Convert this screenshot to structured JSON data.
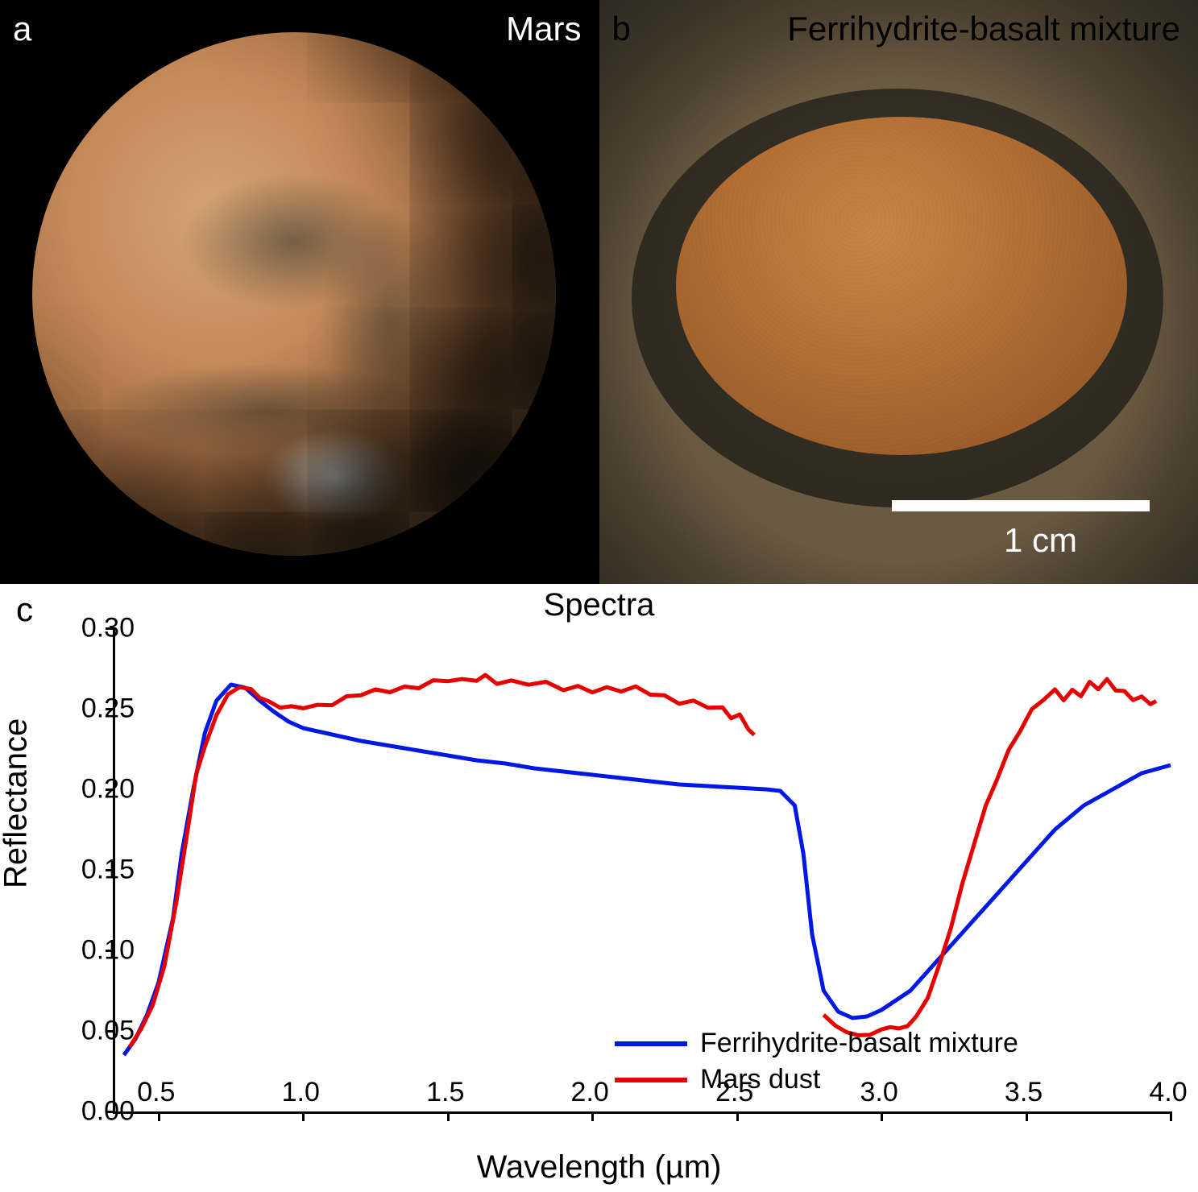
{
  "panel_a": {
    "letter": "a",
    "label": "Mars",
    "label_color": "#ffffff",
    "letter_color": "#ffffff"
  },
  "panel_b": {
    "letter": "b",
    "label": "Ferrihydrite-basalt mixture",
    "label_color": "#000000",
    "letter_color": "#000000",
    "scalebar_text": "1 cm",
    "scalebar_color": "#ffffff"
  },
  "panel_c": {
    "letter": "c",
    "title": "Spectra",
    "y_axis_label": "Reflectance",
    "x_axis_label": "Wavelength (µm)",
    "xlim": [
      0.35,
      4.0
    ],
    "ylim": [
      0.0,
      0.3
    ],
    "xticks": [
      0.5,
      1.0,
      1.5,
      2.0,
      2.5,
      3.0,
      3.5,
      4.0
    ],
    "yticks": [
      0.0,
      0.05,
      0.1,
      0.15,
      0.2,
      0.25,
      0.3
    ],
    "line_width": 5,
    "title_fontsize": 40,
    "label_fontsize": 40,
    "tick_fontsize": 34,
    "background_color": "#ffffff",
    "series": {
      "ferrihydrite": {
        "label": "Ferrihydrite-basalt mixture",
        "color": "#0018e6",
        "data": [
          [
            0.38,
            0.035
          ],
          [
            0.42,
            0.045
          ],
          [
            0.46,
            0.06
          ],
          [
            0.5,
            0.08
          ],
          [
            0.55,
            0.12
          ],
          [
            0.58,
            0.16
          ],
          [
            0.62,
            0.2
          ],
          [
            0.66,
            0.235
          ],
          [
            0.7,
            0.255
          ],
          [
            0.75,
            0.265
          ],
          [
            0.8,
            0.263
          ],
          [
            0.85,
            0.255
          ],
          [
            0.9,
            0.248
          ],
          [
            0.95,
            0.242
          ],
          [
            1.0,
            0.238
          ],
          [
            1.1,
            0.234
          ],
          [
            1.2,
            0.23
          ],
          [
            1.3,
            0.227
          ],
          [
            1.4,
            0.224
          ],
          [
            1.5,
            0.221
          ],
          [
            1.6,
            0.218
          ],
          [
            1.7,
            0.216
          ],
          [
            1.8,
            0.213
          ],
          [
            1.9,
            0.211
          ],
          [
            2.0,
            0.209
          ],
          [
            2.1,
            0.207
          ],
          [
            2.2,
            0.205
          ],
          [
            2.3,
            0.203
          ],
          [
            2.4,
            0.202
          ],
          [
            2.5,
            0.201
          ],
          [
            2.6,
            0.2
          ],
          [
            2.65,
            0.199
          ],
          [
            2.7,
            0.19
          ],
          [
            2.73,
            0.16
          ],
          [
            2.76,
            0.11
          ],
          [
            2.8,
            0.075
          ],
          [
            2.85,
            0.062
          ],
          [
            2.9,
            0.058
          ],
          [
            2.95,
            0.059
          ],
          [
            3.0,
            0.063
          ],
          [
            3.1,
            0.075
          ],
          [
            3.2,
            0.095
          ],
          [
            3.3,
            0.115
          ],
          [
            3.4,
            0.135
          ],
          [
            3.5,
            0.155
          ],
          [
            3.6,
            0.175
          ],
          [
            3.7,
            0.19
          ],
          [
            3.8,
            0.2
          ],
          [
            3.9,
            0.21
          ],
          [
            4.0,
            0.215
          ]
        ]
      },
      "mars_dust_vis": {
        "label": "Mars dust",
        "color": "#e60000",
        "data": [
          [
            0.4,
            0.04
          ],
          [
            0.44,
            0.05
          ],
          [
            0.48,
            0.065
          ],
          [
            0.52,
            0.09
          ],
          [
            0.56,
            0.13
          ],
          [
            0.6,
            0.175
          ],
          [
            0.63,
            0.21
          ],
          [
            0.66,
            0.225
          ],
          [
            0.7,
            0.245
          ],
          [
            0.74,
            0.258
          ],
          [
            0.78,
            0.265
          ],
          [
            0.82,
            0.263
          ],
          [
            0.85,
            0.258
          ],
          [
            0.88,
            0.253
          ],
          [
            0.92,
            0.25
          ],
          [
            0.96,
            0.25
          ],
          [
            1.0,
            0.252
          ],
          [
            1.05,
            0.253
          ],
          [
            1.1,
            0.254
          ],
          [
            1.15,
            0.256
          ],
          [
            1.2,
            0.258
          ],
          [
            1.25,
            0.26
          ],
          [
            1.3,
            0.262
          ],
          [
            1.35,
            0.264
          ],
          [
            1.4,
            0.265
          ],
          [
            1.45,
            0.266
          ],
          [
            1.5,
            0.267
          ],
          [
            1.55,
            0.266
          ],
          [
            1.6,
            0.269
          ],
          [
            1.63,
            0.271
          ],
          [
            1.67,
            0.268
          ],
          [
            1.72,
            0.266
          ],
          [
            1.78,
            0.265
          ],
          [
            1.84,
            0.264
          ],
          [
            1.9,
            0.263
          ],
          [
            1.95,
            0.264
          ],
          [
            2.0,
            0.263
          ],
          [
            2.05,
            0.262
          ],
          [
            2.1,
            0.261
          ],
          [
            2.15,
            0.261
          ],
          [
            2.2,
            0.26
          ],
          [
            2.25,
            0.258
          ],
          [
            2.3,
            0.256
          ],
          [
            2.35,
            0.254
          ],
          [
            2.4,
            0.251
          ],
          [
            2.45,
            0.248
          ],
          [
            2.48,
            0.245
          ],
          [
            2.51,
            0.246
          ],
          [
            2.54,
            0.24
          ],
          [
            2.56,
            0.233
          ]
        ]
      },
      "mars_dust_ir": {
        "color": "#e60000",
        "data": [
          [
            2.8,
            0.06
          ],
          [
            2.84,
            0.052
          ],
          [
            2.88,
            0.048
          ],
          [
            2.92,
            0.047
          ],
          [
            2.96,
            0.049
          ],
          [
            3.0,
            0.052
          ],
          [
            3.03,
            0.053
          ],
          [
            3.06,
            0.05
          ],
          [
            3.09,
            0.052
          ],
          [
            3.12,
            0.058
          ],
          [
            3.16,
            0.072
          ],
          [
            3.2,
            0.092
          ],
          [
            3.24,
            0.115
          ],
          [
            3.28,
            0.14
          ],
          [
            3.32,
            0.165
          ],
          [
            3.36,
            0.188
          ],
          [
            3.4,
            0.208
          ],
          [
            3.44,
            0.225
          ],
          [
            3.48,
            0.238
          ],
          [
            3.52,
            0.248
          ],
          [
            3.56,
            0.255
          ],
          [
            3.6,
            0.26
          ],
          [
            3.63,
            0.257
          ],
          [
            3.66,
            0.262
          ],
          [
            3.69,
            0.26
          ],
          [
            3.72,
            0.265
          ],
          [
            3.75,
            0.262
          ],
          [
            3.78,
            0.266
          ],
          [
            3.81,
            0.263
          ],
          [
            3.84,
            0.261
          ],
          [
            3.87,
            0.258
          ],
          [
            3.9,
            0.256
          ],
          [
            3.93,
            0.253
          ],
          [
            3.95,
            0.252
          ]
        ]
      }
    },
    "legend": [
      {
        "key": "ferrihydrite"
      },
      {
        "key": "mars_dust_vis"
      }
    ]
  }
}
